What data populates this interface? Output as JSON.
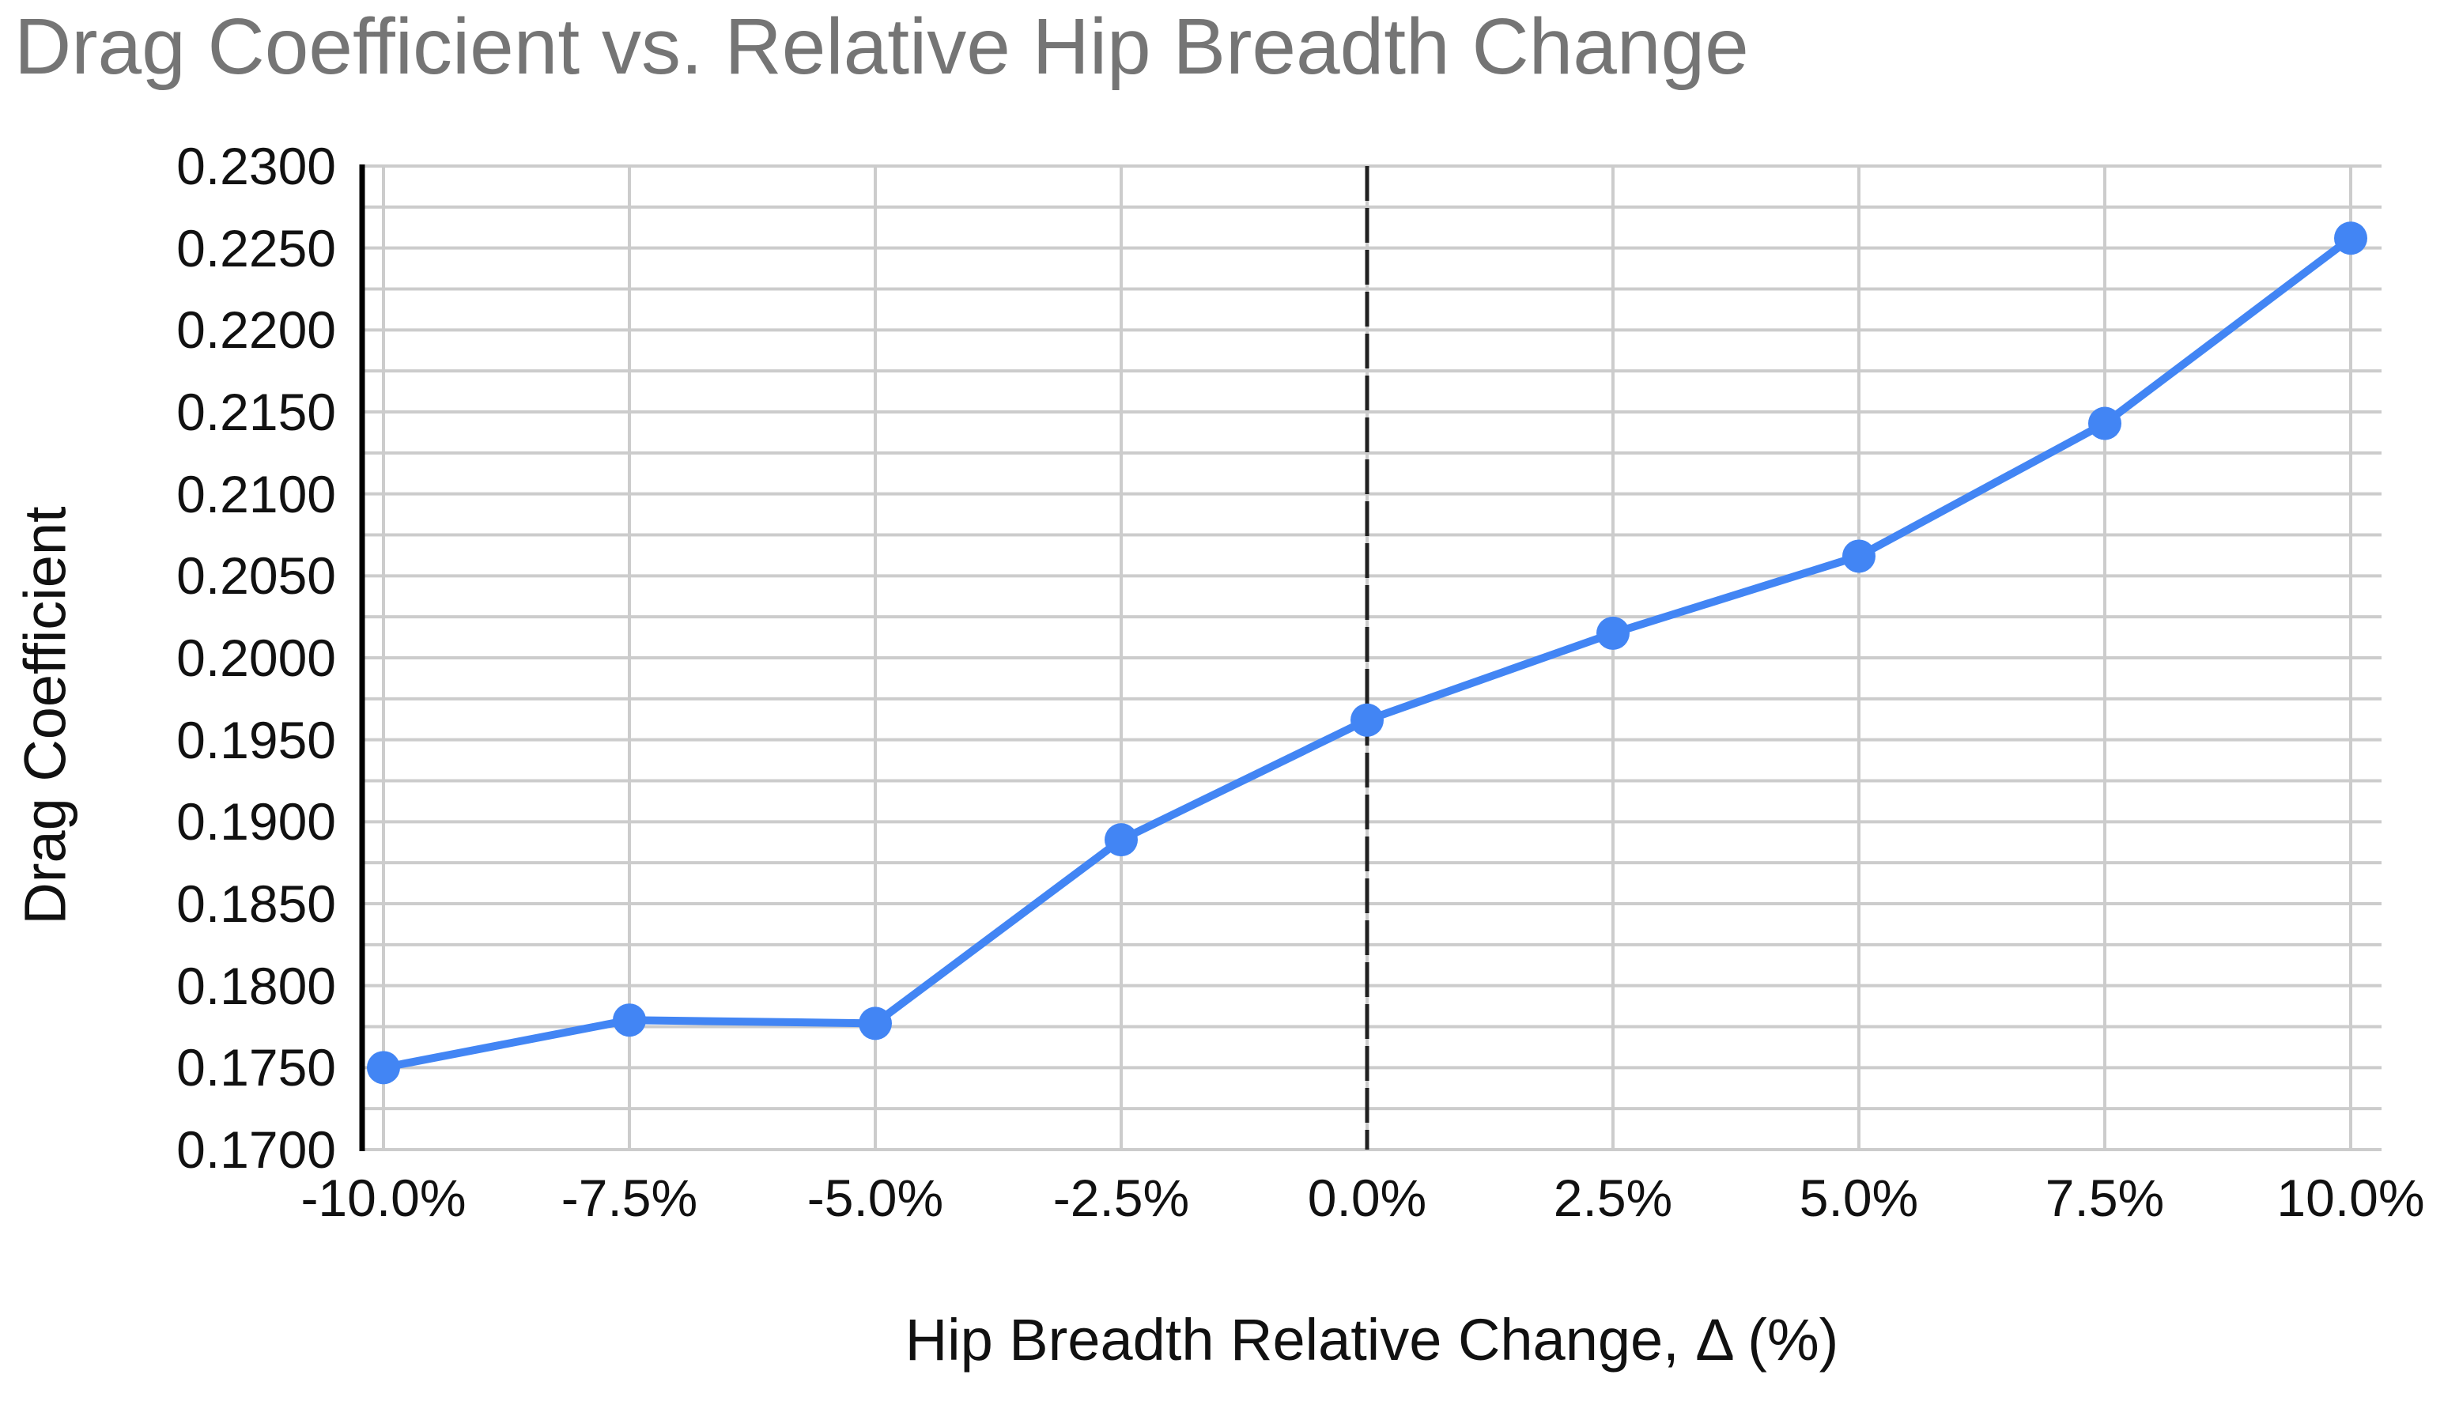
{
  "chart_data": {
    "type": "line",
    "title": "Drag Coefficient vs. Relative Hip Breadth Change",
    "xlabel": "Hip Breadth Relative Change, Δ (%)",
    "ylabel": "Drag Coefficient",
    "categories": [
      "-10.0%",
      "-7.5%",
      "-5.0%",
      "-2.5%",
      "0.0%",
      "2.5%",
      "5.0%",
      "7.5%",
      "10.0%"
    ],
    "x_values_percent": [
      -10.0,
      -7.5,
      -5.0,
      -2.5,
      0.0,
      2.5,
      5.0,
      7.5,
      10.0
    ],
    "series": [
      {
        "name": "Drag Coefficient",
        "color": "#4285f4",
        "values": [
          0.175,
          0.1779,
          0.1777,
          0.1889,
          0.1962,
          0.2015,
          0.2062,
          0.2143,
          0.2256
        ]
      }
    ],
    "ylim": [
      0.17,
      0.23
    ],
    "y_major_step": 0.005,
    "y_minor_step": 0.0025,
    "y_tick_labels": [
      "0.2300",
      "0.2250",
      "0.2200",
      "0.2150",
      "0.2100",
      "0.2050",
      "0.2000",
      "0.1950",
      "0.1900",
      "0.1850",
      "0.1800",
      "0.1750",
      "0.1700"
    ],
    "grid": true,
    "legend_position": "none",
    "marker": "circle",
    "reference_line": {
      "at_category": "0.0%",
      "style": "dashed",
      "color": "#212121"
    }
  },
  "colors": {
    "background": "#ffffff",
    "title_text": "#757575",
    "axis_title_text": "#111111",
    "tick_label_text": "#111111",
    "gridline": "#cccccc",
    "y_axis_line": "#000000",
    "series_blue": "#4285f4",
    "reference_line": "#212121"
  }
}
